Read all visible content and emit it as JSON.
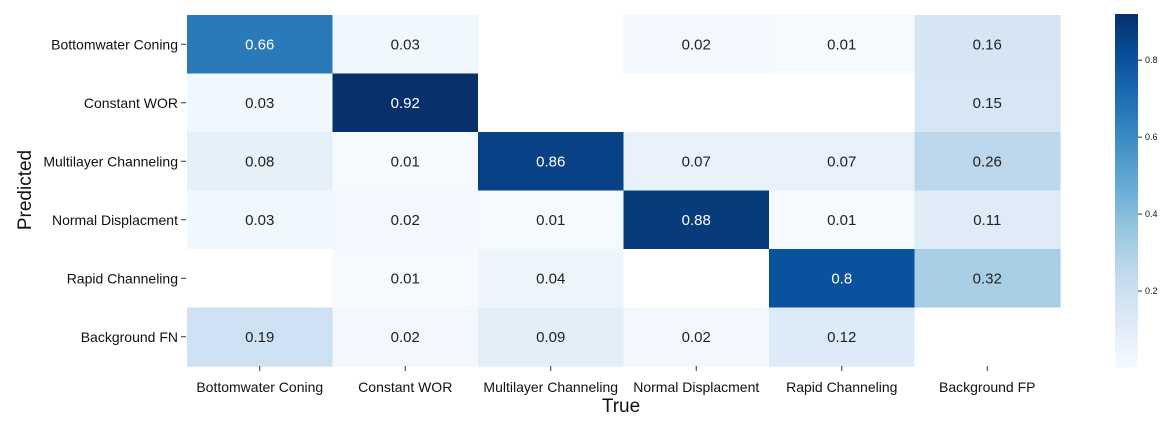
{
  "chart_data": {
    "type": "heatmap",
    "xlabel": "True",
    "ylabel": "Predicted",
    "x_categories": [
      "Bottomwater Coning",
      "Constant WOR",
      "Multilayer Channeling",
      "Normal Displacment",
      "Rapid Channeling",
      "Background FP"
    ],
    "y_categories": [
      "Bottomwater Coning",
      "Constant WOR",
      "Multilayer Channeling",
      "Normal Displacment",
      "Rapid Channeling",
      "Background FN"
    ],
    "values": [
      [
        0.66,
        0.03,
        null,
        0.02,
        0.01,
        0.16
      ],
      [
        0.03,
        0.92,
        null,
        null,
        null,
        0.15
      ],
      [
        0.08,
        0.01,
        0.86,
        0.07,
        0.07,
        0.26
      ],
      [
        0.03,
        0.02,
        0.01,
        0.88,
        0.01,
        0.11
      ],
      [
        null,
        0.01,
        0.04,
        null,
        0.8,
        0.32
      ],
      [
        0.19,
        0.02,
        0.09,
        0.02,
        0.12,
        null
      ]
    ],
    "colormap": "Blues",
    "vmin": 0,
    "vmax": 0.92,
    "colorbar_ticks": [
      0.2,
      0.4,
      0.6,
      0.8
    ],
    "colorbar_tick_labels": [
      "0.2",
      "0.4",
      "0.6",
      "0.8"
    ],
    "empty_cell_color": "#ffffff",
    "grid": false
  }
}
